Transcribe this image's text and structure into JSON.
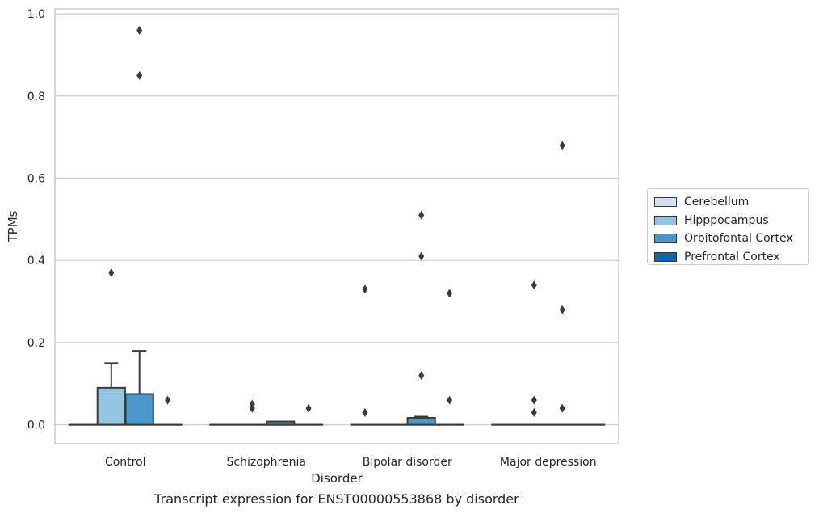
{
  "chart_data": {
    "type": "box",
    "xlabel": "Disorder",
    "ylabel": "TPMs",
    "caption": "Transcript expression for ENST00000553868 by disorder",
    "categories": [
      "Control",
      "Schizophrenia",
      "Bipolar disorder",
      "Major depression"
    ],
    "ylim": [
      -0.046,
      1.012
    ],
    "yticks": [
      0.0,
      0.2,
      0.4,
      0.6,
      0.8,
      1.0
    ],
    "ytick_labels": [
      "0.0",
      "0.2",
      "0.4",
      "0.6",
      "0.8",
      "1.0"
    ],
    "grid": true,
    "legend_position": "right",
    "series": [
      {
        "name": "Cerebellum",
        "color": "#d0e1f2",
        "boxes": [
          {
            "q1": 0,
            "median": 0,
            "q3": 0,
            "whisker_low": 0,
            "whisker_high": 0,
            "outliers": []
          },
          {
            "q1": 0,
            "median": 0,
            "q3": 0,
            "whisker_low": 0,
            "whisker_high": 0,
            "outliers": []
          },
          {
            "q1": 0,
            "median": 0,
            "q3": 0,
            "whisker_low": 0,
            "whisker_high": 0,
            "outliers": [
              0.33,
              0.03
            ]
          },
          {
            "q1": 0,
            "median": 0,
            "q3": 0,
            "whisker_low": 0,
            "whisker_high": 0,
            "outliers": []
          }
        ]
      },
      {
        "name": "Hipppocampus",
        "color": "#94c4df",
        "boxes": [
          {
            "q1": 0,
            "median": 0,
            "q3": 0.09,
            "whisker_low": 0,
            "whisker_high": 0.15,
            "outliers": [
              0.37
            ]
          },
          {
            "q1": 0,
            "median": 0,
            "q3": 0,
            "whisker_low": 0,
            "whisker_high": 0,
            "outliers": [
              0.05,
              0.04
            ]
          },
          {
            "q1": 0,
            "median": 0,
            "q3": 0,
            "whisker_low": 0,
            "whisker_high": 0,
            "outliers": []
          },
          {
            "q1": 0,
            "median": 0,
            "q3": 0,
            "whisker_low": 0,
            "whisker_high": 0,
            "outliers": [
              0.34,
              0.06,
              0.03
            ]
          }
        ]
      },
      {
        "name": "Orbitofontal Cortex",
        "color": "#4a98c9",
        "boxes": [
          {
            "q1": 0,
            "median": 0,
            "q3": 0.075,
            "whisker_low": 0,
            "whisker_high": 0.18,
            "outliers": [
              0.96,
              0.85
            ]
          },
          {
            "q1": 0,
            "median": 0,
            "q3": 0.008,
            "whisker_low": 0,
            "whisker_high": 0.008,
            "outliers": []
          },
          {
            "q1": 0,
            "median": 0,
            "q3": 0.017,
            "whisker_low": 0,
            "whisker_high": 0.02,
            "outliers": [
              0.51,
              0.41,
              0.12
            ]
          },
          {
            "q1": 0,
            "median": 0,
            "q3": 0,
            "whisker_low": 0,
            "whisker_high": 0,
            "outliers": [
              0.68,
              0.28,
              0.04
            ]
          }
        ]
      },
      {
        "name": "Prefrontal Cortex",
        "color": "#1764ab",
        "boxes": [
          {
            "q1": 0,
            "median": 0,
            "q3": 0,
            "whisker_low": 0,
            "whisker_high": 0,
            "outliers": [
              0.06
            ]
          },
          {
            "q1": 0,
            "median": 0,
            "q3": 0,
            "whisker_low": 0,
            "whisker_high": 0,
            "outliers": [
              0.04
            ]
          },
          {
            "q1": 0,
            "median": 0,
            "q3": 0,
            "whisker_low": 0,
            "whisker_high": 0,
            "outliers": [
              0.32,
              0.06
            ]
          },
          {
            "q1": 0,
            "median": 0,
            "q3": 0,
            "whisker_low": 0,
            "whisker_high": 0,
            "outliers": []
          }
        ]
      }
    ]
  }
}
